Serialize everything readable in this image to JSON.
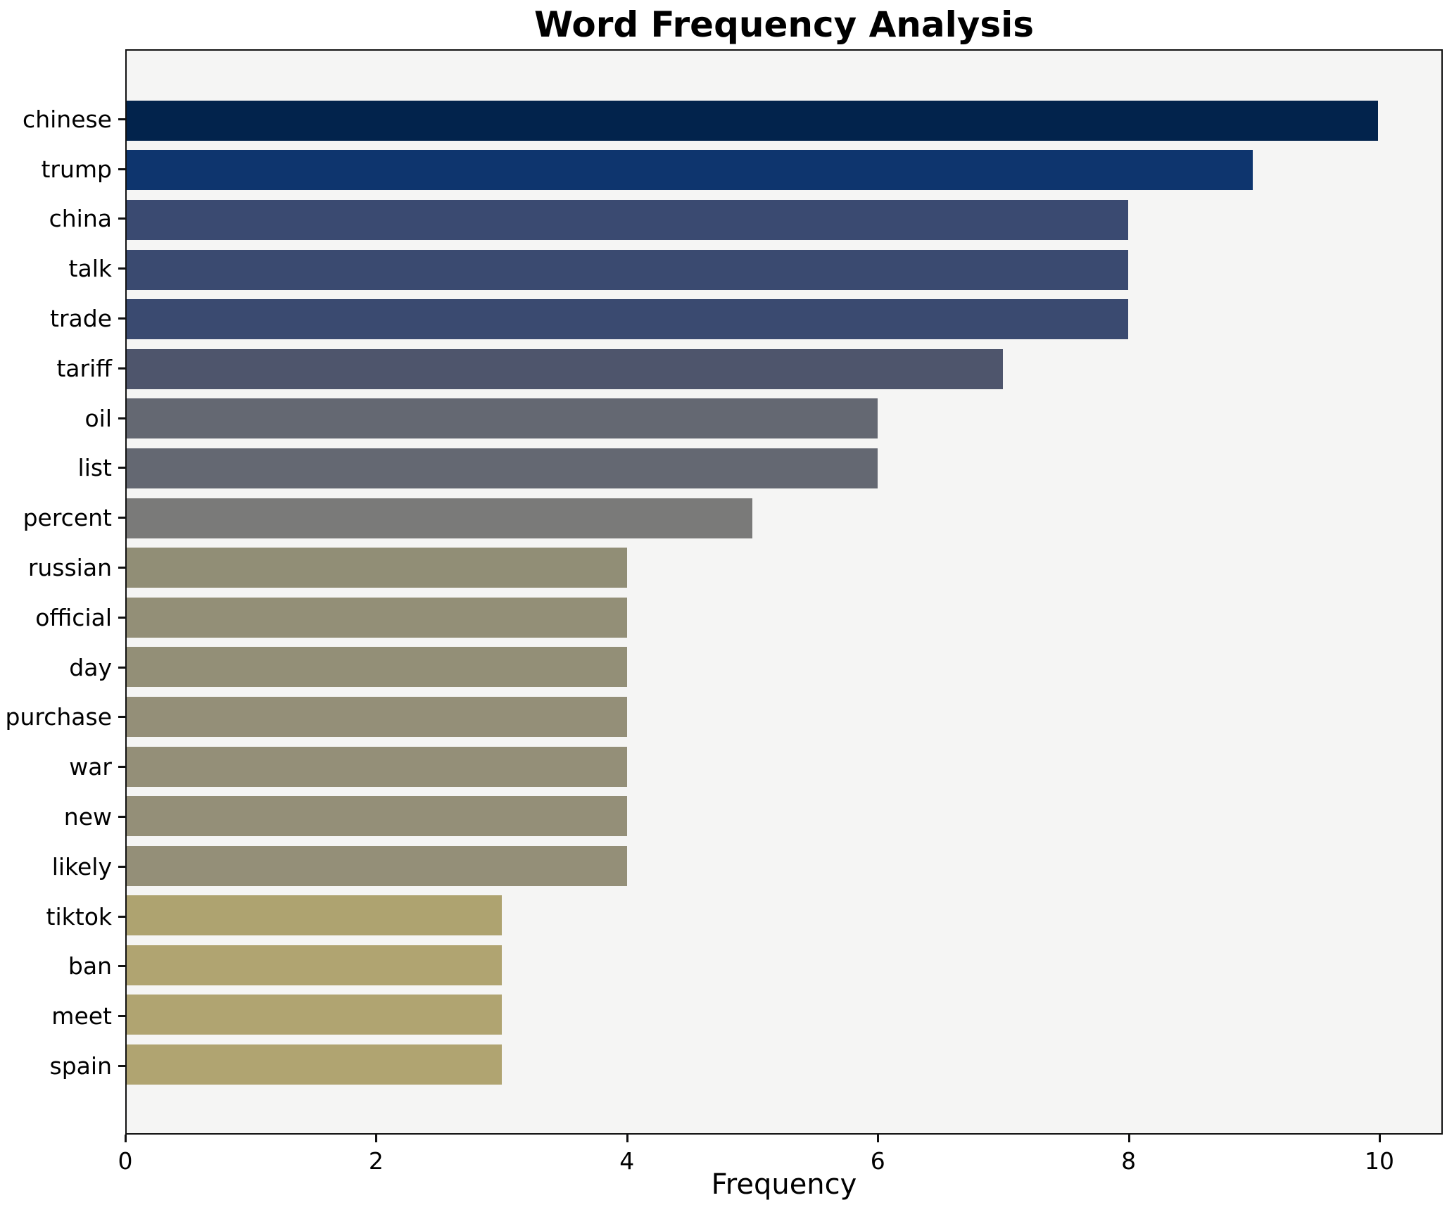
{
  "title": "Word Frequency Analysis",
  "chart_data": {
    "type": "bar",
    "orientation": "horizontal",
    "title": "Word Frequency Analysis",
    "xlabel": "Frequency",
    "ylabel": "",
    "categories": [
      "chinese",
      "trump",
      "china",
      "talk",
      "trade",
      "tariff",
      "oil",
      "list",
      "percent",
      "russian",
      "official",
      "day",
      "purchase",
      "war",
      "new",
      "likely",
      "tiktok",
      "ban",
      "meet",
      "spain"
    ],
    "values": [
      10,
      9,
      8,
      8,
      8,
      7,
      6,
      6,
      5,
      4,
      4,
      4,
      4,
      4,
      4,
      4,
      3,
      3,
      3,
      3
    ],
    "bar_colors": [
      "#02234c",
      "#0e356e",
      "#3a4a71",
      "#3a4a70",
      "#3a4a70",
      "#4e556c",
      "#646872",
      "#646872",
      "#7a7a79",
      "#918e76",
      "#938f77",
      "#938f77",
      "#948f78",
      "#948f78",
      "#948f78",
      "#948f78",
      "#aea370",
      "#b0a471",
      "#b0a471",
      "#b0a471"
    ],
    "xlim": [
      0,
      10.505
    ],
    "x_ticks": [
      0,
      2,
      4,
      6,
      8,
      10
    ],
    "grid": false,
    "legend": "none",
    "plot_bg": "#f5f5f4",
    "figure_bg": "#ffffff",
    "spine_color": "#111111",
    "text_color": "#000000"
  }
}
